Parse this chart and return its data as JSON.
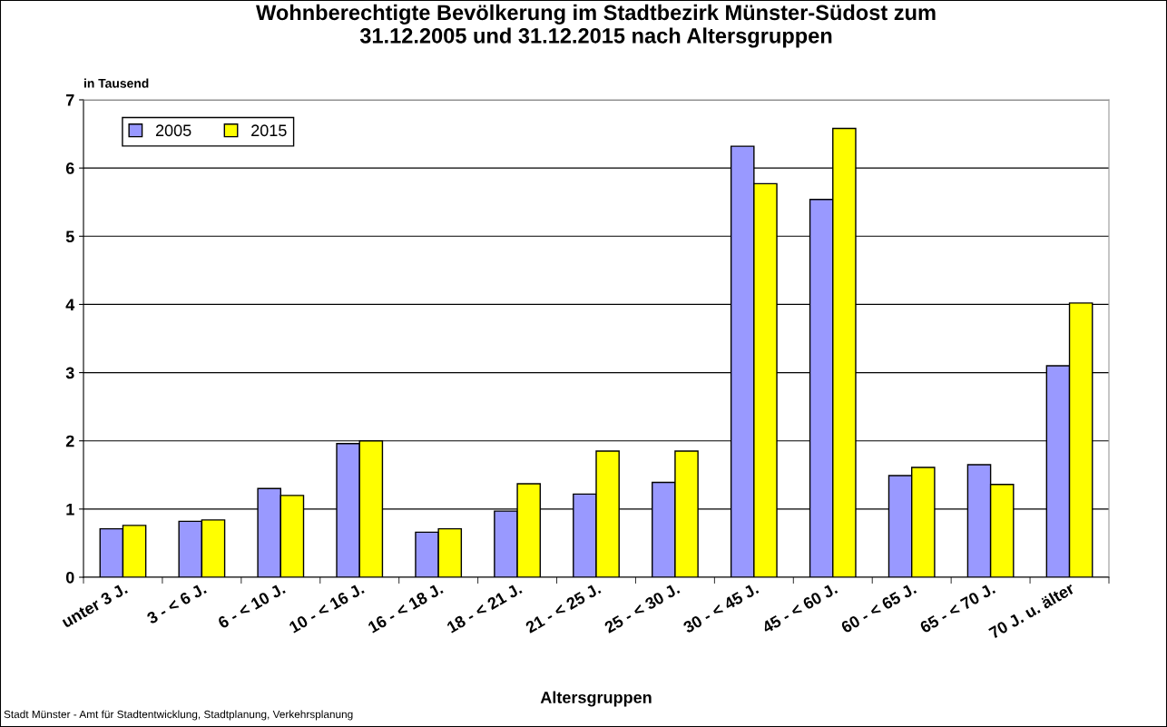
{
  "chart_data": {
    "type": "bar",
    "title": "Wohnberechtigte Bevölkerung im Stadtbezirk Münster-Südost zum\n31.12.2005 und 31.12.2015 nach Altersgruppen",
    "xlabel": "Altersgruppen",
    "ylabel": "in Tausend",
    "categories": [
      "unter 3 J.",
      "3 - < 6 J.",
      "6 - < 10 J.",
      "10 - < 16 J.",
      "16 - < 18 J.",
      "18 - < 21 J.",
      "21 - < 25 J.",
      "25 - < 30 J.",
      "30 - < 45 J.",
      "45 - < 60 J.",
      "60 - < 65 J.",
      "65 - < 70 J.",
      "70 J. u. älter"
    ],
    "series": [
      {
        "name": "2005",
        "color": "#9999ff",
        "values": [
          0.71,
          0.82,
          1.3,
          1.96,
          0.66,
          0.97,
          1.22,
          1.39,
          6.32,
          5.54,
          1.49,
          1.65,
          3.1
        ]
      },
      {
        "name": "2015",
        "color": "#ffff00",
        "values": [
          0.76,
          0.84,
          1.2,
          2.0,
          0.71,
          1.37,
          1.85,
          1.85,
          5.77,
          6.58,
          1.61,
          1.36,
          4.02
        ]
      }
    ],
    "ylim": [
      0,
      7
    ],
    "yticks": [
      0,
      1,
      2,
      3,
      4,
      5,
      6,
      7
    ],
    "grid": "y",
    "legend": "top left",
    "annotations": [
      "Stadt Münster - Amt für Stadtentwicklung, Stadtplanung, Verkehrsplanung"
    ]
  }
}
